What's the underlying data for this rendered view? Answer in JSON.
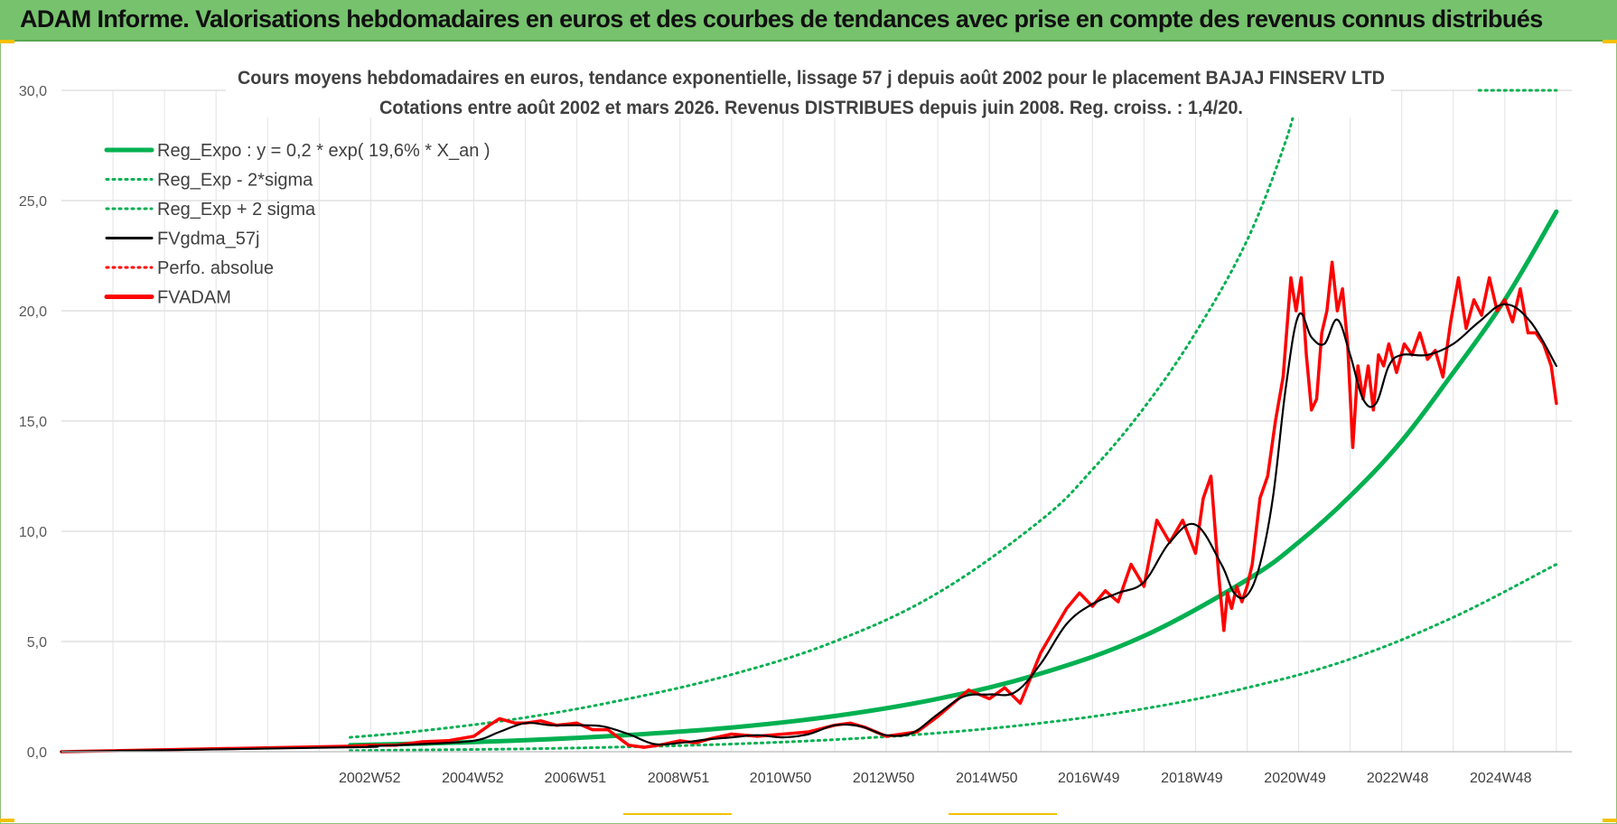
{
  "header": {
    "title": "ADAM Informe. Valorisations hebdomadaires en euros et des courbes de tendances avec prise en compte des revenus connus distribués"
  },
  "colors": {
    "banner_bg": "#76c26d",
    "trend_green": "#00b050",
    "smoothed_black": "#000000",
    "price_red": "#ff0000",
    "grid": "#d9d9d9"
  },
  "chart_data": {
    "type": "line",
    "title": "Cours moyens hebdomadaires en euros, tendance exponentielle, lissage 57 j depuis août 2002 pour le placement BAJAJ FINSERV LTD",
    "subtitle": "Cotations entre août 2002 et mars 2026. Revenus DISTRIBUES depuis juin 2008. Reg. croiss. : 1,4/20.",
    "xlabel": "",
    "ylabel": "",
    "ylim": [
      0,
      30
    ],
    "yticks": [
      "0,0",
      "5,0",
      "10,0",
      "15,0",
      "20,0",
      "25,0",
      "30,0"
    ],
    "xlim": [
      1997.0,
      2026.3
    ],
    "xtick_labels": [
      {
        "label": "2002W52",
        "x": 2002.98
      },
      {
        "label": "2004W52",
        "x": 2004.98
      },
      {
        "label": "2006W51",
        "x": 2006.97
      },
      {
        "label": "2008W51",
        "x": 2008.97
      },
      {
        "label": "2010W50",
        "x": 2010.95
      },
      {
        "label": "2012W50",
        "x": 2012.95
      },
      {
        "label": "2014W50",
        "x": 2014.95
      },
      {
        "label": "2016W49",
        "x": 2016.93
      },
      {
        "label": "2018W49",
        "x": 2018.93
      },
      {
        "label": "2020W49",
        "x": 2020.93
      },
      {
        "label": "2022W48",
        "x": 2022.92
      },
      {
        "label": "2024W48",
        "x": 2024.92
      }
    ],
    "grid": true,
    "legend_position": "top-left",
    "legend": [
      {
        "name": "Reg_Expo : y = 0,2 * exp( 19,6% *  X_an )",
        "color": "#00b050",
        "style": "solid-thick"
      },
      {
        "name": "Reg_Exp - 2*sigma",
        "color": "#00b050",
        "style": "dotted"
      },
      {
        "name": "Reg_Exp + 2 sigma",
        "color": "#00b050",
        "style": "dotted"
      },
      {
        "name": "FVgdma_57j",
        "color": "#000000",
        "style": "solid"
      },
      {
        "name": "Perfo. absolue",
        "color": "#ff0000",
        "style": "dotted"
      },
      {
        "name": "FVADAM",
        "color": "#ff0000",
        "style": "solid-thick"
      }
    ],
    "series": [
      {
        "name": "Reg_Expo : y = 0,2 * exp( 19,6% *  X_an )",
        "x": [
          2002.6,
          2004,
          2006,
          2008,
          2010,
          2012,
          2014,
          2016,
          2018,
          2020,
          2021,
          2022,
          2023,
          2024,
          2025,
          2026.0
        ],
        "y": [
          0.3,
          0.37,
          0.52,
          0.76,
          1.1,
          1.62,
          2.4,
          3.55,
          5.25,
          7.8,
          9.5,
          11.6,
          14.1,
          17.2,
          20.5,
          24.5
        ]
      },
      {
        "name": "Reg_Exp - 2*sigma",
        "x": [
          2002.6,
          2004,
          2006,
          2008,
          2010,
          2012,
          2014,
          2016,
          2018,
          2020,
          2022,
          2024,
          2026.0
        ],
        "y": [
          0.05,
          0.08,
          0.13,
          0.22,
          0.35,
          0.55,
          0.85,
          1.3,
          1.95,
          2.9,
          4.2,
          6.1,
          8.5
        ]
      },
      {
        "name": "Reg_Exp + 2 sigma",
        "x": [
          2002.6,
          2004,
          2006,
          2008,
          2010,
          2012,
          2014,
          2016,
          2017,
          2018,
          2019,
          2020,
          2020.75,
          2021.0
        ],
        "y": [
          0.65,
          0.95,
          1.55,
          2.4,
          3.5,
          5.0,
          7.2,
          10.5,
          12.8,
          15.6,
          19.0,
          23.2,
          27.7,
          30.0
        ]
      },
      {
        "name": "Reg_Exp + 2 sigma (cap)",
        "x": [
          2024.5,
          2026.0
        ],
        "y": [
          30.0,
          30.0
        ]
      },
      {
        "name": "FVgdma_57j",
        "x": [
          1997.0,
          2002.6,
          2003,
          2004,
          2005,
          2005.5,
          2006,
          2006.5,
          2007,
          2007.5,
          2008,
          2008.5,
          2009,
          2009.5,
          2010,
          2010.5,
          2011,
          2011.5,
          2012,
          2012.5,
          2013,
          2013.5,
          2014,
          2014.5,
          2015,
          2015.5,
          2016,
          2016.5,
          2017,
          2017.5,
          2018,
          2018.5,
          2019,
          2019.5,
          2019.75,
          2020,
          2020.25,
          2020.5,
          2020.75,
          2021,
          2021.25,
          2021.5,
          2021.75,
          2022,
          2022.25,
          2022.5,
          2022.75,
          2023,
          2023.5,
          2024,
          2024.5,
          2025,
          2025.5,
          2026.0
        ],
        "y": [
          0,
          0.2,
          0.25,
          0.35,
          0.5,
          0.9,
          1.3,
          1.2,
          1.2,
          1.15,
          0.8,
          0.35,
          0.4,
          0.55,
          0.65,
          0.75,
          0.65,
          0.8,
          1.2,
          1.15,
          0.75,
          0.85,
          1.7,
          2.5,
          2.6,
          2.7,
          4.0,
          5.8,
          6.7,
          7.2,
          7.7,
          9.5,
          10.3,
          8.5,
          7.2,
          7.1,
          8.5,
          11.5,
          16.5,
          19.8,
          18.8,
          18.5,
          19.6,
          18.0,
          16.0,
          15.8,
          17.5,
          18.0,
          18.0,
          18.5,
          19.5,
          20.3,
          19.5,
          17.5
        ]
      },
      {
        "name": "FVADAM",
        "x": [
          1997.0,
          2002.6,
          2003,
          2003.5,
          2004,
          2004.5,
          2005,
          2005.3,
          2005.5,
          2005.8,
          2006,
          2006.3,
          2006.6,
          2007,
          2007.3,
          2007.6,
          2008,
          2008.3,
          2008.6,
          2009,
          2009.3,
          2009.6,
          2010,
          2010.5,
          2011,
          2011.5,
          2012,
          2012.3,
          2012.6,
          2013,
          2013.3,
          2013.6,
          2014,
          2014.3,
          2014.6,
          2015,
          2015.3,
          2015.6,
          2016,
          2016.25,
          2016.5,
          2016.75,
          2017,
          2017.25,
          2017.5,
          2017.75,
          2018,
          2018.25,
          2018.5,
          2018.75,
          2019,
          2019.15,
          2019.3,
          2019.45,
          2019.55,
          2019.62,
          2019.7,
          2019.8,
          2019.9,
          2020,
          2020.1,
          2020.25,
          2020.4,
          2020.55,
          2020.7,
          2020.85,
          2020.95,
          2021.05,
          2021.15,
          2021.25,
          2021.35,
          2021.45,
          2021.55,
          2021.65,
          2021.75,
          2021.85,
          2021.95,
          2022.05,
          2022.15,
          2022.25,
          2022.35,
          2022.45,
          2022.55,
          2022.65,
          2022.75,
          2022.9,
          2023.05,
          2023.2,
          2023.35,
          2023.5,
          2023.65,
          2023.8,
          2023.95,
          2024.1,
          2024.25,
          2024.4,
          2024.55,
          2024.7,
          2024.85,
          2025.0,
          2025.15,
          2025.3,
          2025.45,
          2025.6,
          2025.75,
          2025.9,
          2026.0
        ],
        "y": [
          0,
          0.25,
          0.3,
          0.3,
          0.45,
          0.5,
          0.7,
          1.2,
          1.5,
          1.3,
          1.3,
          1.4,
          1.2,
          1.3,
          1.0,
          1.0,
          0.3,
          0.2,
          0.3,
          0.5,
          0.4,
          0.6,
          0.8,
          0.7,
          0.8,
          0.9,
          1.2,
          1.3,
          1.1,
          0.7,
          0.8,
          0.9,
          1.6,
          2.2,
          2.8,
          2.4,
          2.9,
          2.2,
          4.5,
          5.5,
          6.5,
          7.2,
          6.6,
          7.3,
          6.8,
          8.5,
          7.5,
          10.5,
          9.5,
          10.5,
          9.0,
          11.5,
          12.5,
          8.0,
          5.5,
          7.2,
          6.5,
          7.5,
          6.8,
          7.5,
          8.5,
          11.5,
          12.5,
          15.0,
          17.0,
          21.5,
          20.0,
          21.5,
          18.0,
          15.5,
          16.0,
          19.0,
          20.0,
          22.2,
          20.0,
          21.0,
          18.5,
          13.8,
          17.5,
          16.0,
          17.5,
          15.5,
          18.0,
          17.5,
          18.5,
          17.2,
          18.5,
          18.0,
          19.0,
          17.8,
          18.2,
          17.0,
          19.5,
          21.5,
          19.2,
          20.5,
          19.8,
          21.5,
          20.0,
          20.5,
          19.5,
          21.0,
          19.0,
          19.0,
          18.5,
          17.5,
          15.8
        ]
      }
    ]
  }
}
